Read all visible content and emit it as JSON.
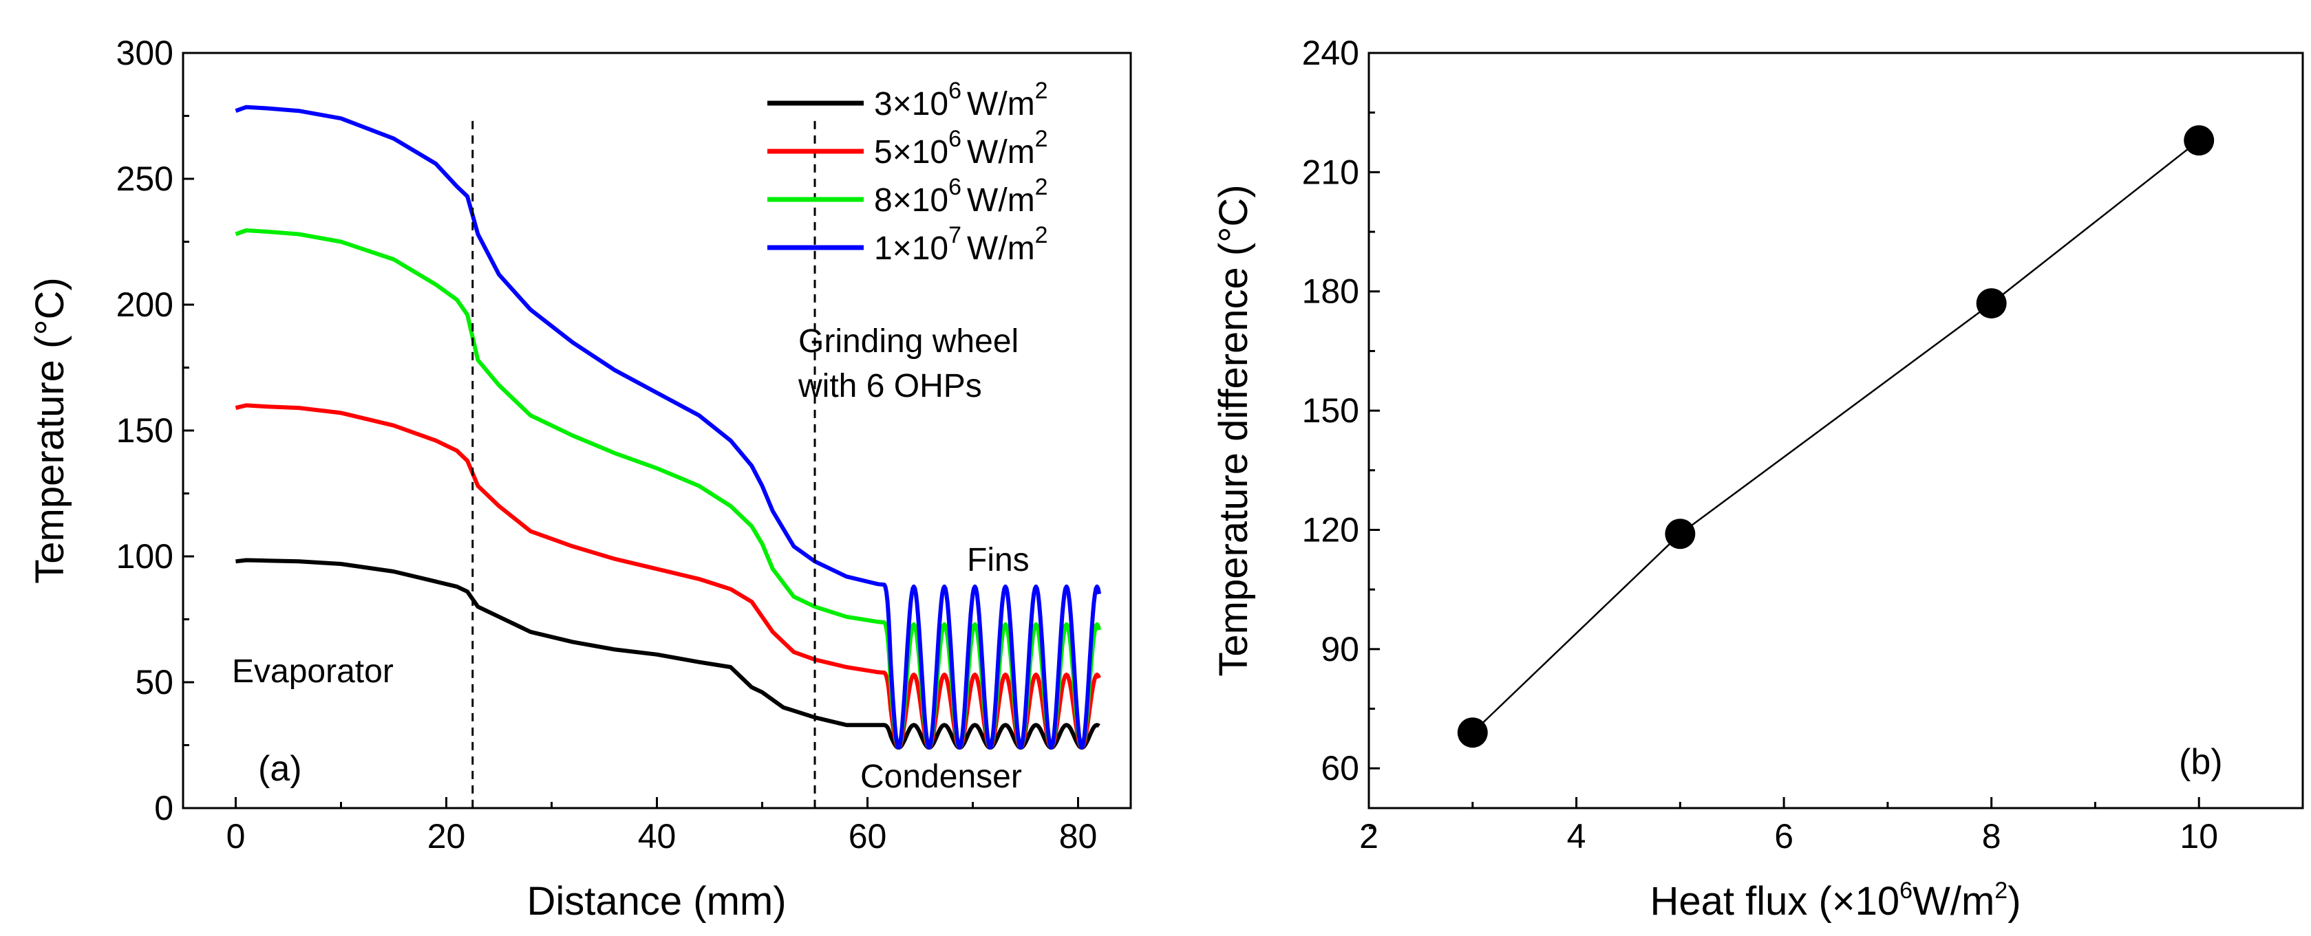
{
  "chart_data": [
    {
      "type": "line",
      "panel_label": "(a)",
      "xlabel": "Distance (mm)",
      "ylabel": "Temperature (°C)",
      "xlim": [
        -5,
        85
      ],
      "ylim": [
        0,
        300
      ],
      "xticks": [
        0,
        20,
        40,
        60,
        80
      ],
      "yticks": [
        0,
        50,
        100,
        150,
        200,
        250,
        300
      ],
      "grid": false,
      "legend_position": "top-right",
      "vlines": [
        22.5,
        55
      ],
      "annotations": [
        "Evaporator",
        "Condenser",
        "Fins",
        "Grinding wheel",
        "with 6 OHPs"
      ],
      "fins": {
        "start": 61.5,
        "end": 82,
        "period": 2.9
      },
      "series": [
        {
          "name_base": "3×10",
          "name_exp": "6",
          "name_unit": "W/m",
          "name_unit_exp": "2",
          "color": "#000000",
          "fin_min": 24,
          "fin_max": 33,
          "points": [
            [
              0,
              98
            ],
            [
              1,
              98.5
            ],
            [
              3,
              98.3
            ],
            [
              6,
              98
            ],
            [
              10,
              97
            ],
            [
              15,
              94
            ],
            [
              19,
              90
            ],
            [
              21,
              88
            ],
            [
              22,
              86
            ],
            [
              23,
              80
            ],
            [
              25,
              76
            ],
            [
              28,
              70
            ],
            [
              32,
              66
            ],
            [
              36,
              63
            ],
            [
              40,
              61
            ],
            [
              44,
              58
            ],
            [
              47,
              56
            ],
            [
              48,
              52
            ],
            [
              49,
              48
            ],
            [
              50,
              46
            ],
            [
              52,
              40
            ],
            [
              55,
              36
            ],
            [
              58,
              33
            ],
            [
              61,
              33
            ]
          ]
        },
        {
          "name_base": "5×10",
          "name_exp": "6",
          "name_unit": "W/m",
          "name_unit_exp": "2",
          "color": "#ff0000",
          "fin_min": 24,
          "fin_max": 53,
          "points": [
            [
              0,
              159
            ],
            [
              1,
              160
            ],
            [
              3,
              159.5
            ],
            [
              6,
              159
            ],
            [
              10,
              157
            ],
            [
              15,
              152
            ],
            [
              19,
              146
            ],
            [
              21,
              142
            ],
            [
              22,
              138
            ],
            [
              23,
              128
            ],
            [
              25,
              120
            ],
            [
              28,
              110
            ],
            [
              32,
              104
            ],
            [
              36,
              99
            ],
            [
              40,
              95
            ],
            [
              44,
              91
            ],
            [
              47,
              87
            ],
            [
              49,
              82
            ],
            [
              50,
              76
            ],
            [
              51,
              70
            ],
            [
              53,
              62
            ],
            [
              55,
              59
            ],
            [
              58,
              56
            ],
            [
              61,
              54
            ]
          ]
        },
        {
          "name_base": "8×10",
          "name_exp": "6",
          "name_unit": "W/m",
          "name_unit_exp": "2",
          "color": "#00ee00",
          "fin_min": 24,
          "fin_max": 73,
          "points": [
            [
              0,
              228
            ],
            [
              1,
              229.5
            ],
            [
              3,
              229
            ],
            [
              6,
              228
            ],
            [
              10,
              225
            ],
            [
              15,
              218
            ],
            [
              19,
              208
            ],
            [
              21,
              202
            ],
            [
              22,
              196
            ],
            [
              23,
              178
            ],
            [
              25,
              168
            ],
            [
              28,
              156
            ],
            [
              32,
              148
            ],
            [
              36,
              141
            ],
            [
              40,
              135
            ],
            [
              44,
              128
            ],
            [
              47,
              120
            ],
            [
              49,
              112
            ],
            [
              50,
              105
            ],
            [
              51,
              95
            ],
            [
              53,
              84
            ],
            [
              55,
              80
            ],
            [
              58,
              76
            ],
            [
              61,
              74
            ]
          ]
        },
        {
          "name_base": "1×10",
          "name_exp": "7",
          "name_unit": "W/m",
          "name_unit_exp": "2",
          "color": "#0000ff",
          "fin_min": 24,
          "fin_max": 88,
          "points": [
            [
              0,
              277
            ],
            [
              1,
              278.5
            ],
            [
              3,
              278
            ],
            [
              6,
              277
            ],
            [
              10,
              274
            ],
            [
              15,
              266
            ],
            [
              19,
              256
            ],
            [
              21,
              247
            ],
            [
              22,
              243
            ],
            [
              23,
              228
            ],
            [
              25,
              212
            ],
            [
              28,
              198
            ],
            [
              32,
              185
            ],
            [
              36,
              174
            ],
            [
              40,
              165
            ],
            [
              44,
              156
            ],
            [
              47,
              146
            ],
            [
              49,
              136
            ],
            [
              50,
              128
            ],
            [
              51,
              118
            ],
            [
              53,
              104
            ],
            [
              55,
              98
            ],
            [
              58,
              92
            ],
            [
              61,
              89
            ]
          ]
        }
      ]
    },
    {
      "type": "scatter",
      "panel_label": "(b)",
      "xlabel_base": "Heat flux (×10",
      "xlabel_exp": "6",
      "xlabel_unit": "W/m",
      "xlabel_unit_exp": "2",
      "xlabel_end": ")",
      "ylabel": "Temperature difference (°C)",
      "xlim": [
        2,
        11
      ],
      "ylim": [
        50,
        240
      ],
      "xticks": [
        2,
        4,
        6,
        8,
        10
      ],
      "yticks": [
        60,
        90,
        120,
        150,
        180,
        210,
        240
      ],
      "grid": false,
      "connected": true,
      "x": [
        3,
        5,
        8,
        10
      ],
      "y": [
        69,
        119,
        177,
        218
      ],
      "color": "#000000"
    }
  ]
}
